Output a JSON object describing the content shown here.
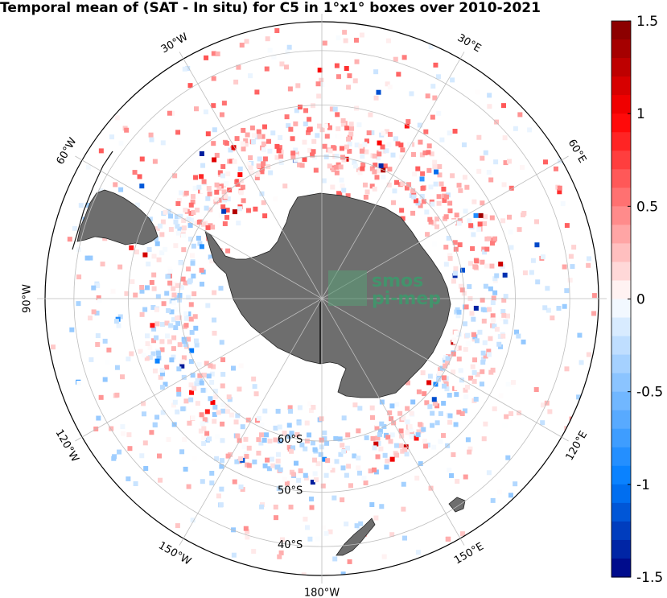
{
  "title": "Temporal mean of (SAT - In situ) for C5 in 1°x1° boxes over 2010-2021",
  "watermark": {
    "line1": "smos",
    "line2": "pi-mep"
  },
  "map": {
    "projection": "south-polar-stereographic",
    "outer_latitude": -35,
    "lat_circles": [
      {
        "lat": -60,
        "label": "60°S"
      },
      {
        "lat": -50,
        "label": "50°S"
      },
      {
        "lat": -40,
        "label": "40°S"
      }
    ],
    "meridians": [
      {
        "lon": 0,
        "label": ""
      },
      {
        "lon": 30,
        "label": "30°E"
      },
      {
        "lon": 60,
        "label": "60°E"
      },
      {
        "lon": 90,
        "label": ""
      },
      {
        "lon": 120,
        "label": "120°E"
      },
      {
        "lon": 150,
        "label": "150°E"
      },
      {
        "lon": 180,
        "label": "180°W"
      },
      {
        "lon": -150,
        "label": "150°W"
      },
      {
        "lon": -120,
        "label": "120°W"
      },
      {
        "lon": -90,
        "label": "90°W"
      },
      {
        "lon": -60,
        "label": "60°W"
      },
      {
        "lon": -30,
        "label": "30°W"
      }
    ],
    "land_color": "#6e6e6e"
  },
  "colorbar": {
    "min": -1.5,
    "max": 1.5,
    "levels": 30,
    "colormap": "blue-white-red",
    "ticks": [
      {
        "value": 1.5,
        "label": "1.5"
      },
      {
        "value": 1,
        "label": "1"
      },
      {
        "value": 0.5,
        "label": "0.5"
      },
      {
        "value": 0,
        "label": "0"
      },
      {
        "value": -0.5,
        "label": "-0.5"
      },
      {
        "value": -1,
        "label": "-1"
      },
      {
        "value": -1.5,
        "label": "-1.5"
      }
    ]
  }
}
